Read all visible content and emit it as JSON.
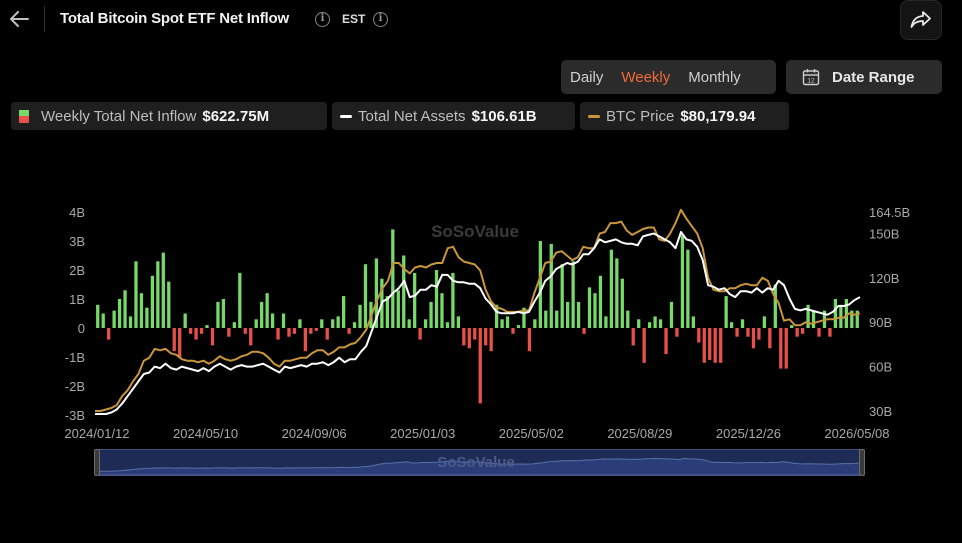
{
  "header": {
    "title": "Total Bitcoin Spot ETF Net Inflow",
    "timezone": "EST"
  },
  "periods": [
    {
      "label": "Daily",
      "active": false
    },
    {
      "label": "Weekly",
      "active": true
    },
    {
      "label": "Monthly",
      "active": false
    }
  ],
  "date_range": {
    "label": "Date Range",
    "icon_text": "12"
  },
  "legend": [
    {
      "name": "Weekly Total Net Inflow",
      "value": "$622.75M"
    },
    {
      "name": "Total Net Assets",
      "value": "$106.61B"
    },
    {
      "name": "BTC Price",
      "value": "$80,179.94"
    }
  ],
  "watermark": "SoSoValue",
  "colors": {
    "positive": "#78d86a",
    "negative": "#e8514a",
    "assets": "#ffffff",
    "btc": "#c9963a",
    "accent": "#f06a3a"
  },
  "chart_data": {
    "type": "bar",
    "x_tick_labels": [
      "2024/01/12",
      "2024/05/10",
      "2024/09/06",
      "2025/01/03",
      "2025/05/02",
      "2025/08/29",
      "2025/12/26",
      "2026/05/08"
    ],
    "y_left": {
      "ticks": [
        4,
        3,
        2,
        1,
        0,
        -1,
        -2,
        -3
      ],
      "tick_labels": [
        "4B",
        "3B",
        "2B",
        "1B",
        "0",
        "-1B",
        "-2B",
        "-3B"
      ],
      "range": [
        -3,
        4
      ]
    },
    "y_right": {
      "tick_labels": [
        "164.5B",
        "150B",
        "120B",
        "90B",
        "60B",
        "30B"
      ],
      "ticks": [
        164.5,
        150,
        120,
        90,
        60,
        30
      ],
      "range": [
        30,
        164.5
      ]
    },
    "grid": false,
    "legend_position": "top-left",
    "series": [
      {
        "name": "Weekly Total Net Inflow",
        "type": "bar",
        "unit": "B USD",
        "values": [
          0.8,
          0.5,
          -0.4,
          0.6,
          1.0,
          1.3,
          0.4,
          2.3,
          1.2,
          0.7,
          1.8,
          2.3,
          2.6,
          1.6,
          -0.8,
          -1.0,
          0.5,
          -0.2,
          -0.4,
          -0.2,
          0.1,
          -0.6,
          0.9,
          1.0,
          -0.3,
          0.2,
          1.9,
          -0.2,
          -0.6,
          0.3,
          0.9,
          1.2,
          0.5,
          -0.4,
          0.5,
          -0.3,
          -0.2,
          0.3,
          -0.8,
          -0.2,
          -0.1,
          0.3,
          -0.4,
          0.3,
          0.4,
          1.1,
          -0.2,
          0.2,
          0.8,
          2.2,
          0.9,
          2.4,
          1.7,
          1.1,
          3.4,
          1.3,
          2.5,
          0.3,
          1.9,
          -0.4,
          0.3,
          0.9,
          2.0,
          1.2,
          0.2,
          1.9,
          0.4,
          -0.6,
          -0.7,
          -0.4,
          -2.6,
          -0.6,
          -0.8,
          0.8,
          0.3,
          0.4,
          -0.2,
          0.1,
          0.7,
          -0.8,
          0.3,
          3.0,
          0.6,
          2.9,
          0.6,
          2.2,
          0.9,
          2.3,
          0.9,
          -0.2,
          1.4,
          1.2,
          1.8,
          0.4,
          2.7,
          2.4,
          1.7,
          0.6,
          -0.6,
          0.3,
          -1.2,
          0.2,
          0.4,
          0.3,
          -0.9,
          0.9,
          -0.3,
          3.2,
          2.7,
          0.4,
          -0.5,
          -1.2,
          -1.1,
          -1.2,
          -1.2,
          1.1,
          0.2,
          -0.3,
          0.3,
          -0.3,
          -0.7,
          -0.4,
          0.4,
          -0.7,
          1.5,
          -1.4,
          -1.4,
          0.1,
          -0.3,
          -0.2,
          0.8,
          0.6,
          -0.3,
          0.6,
          -0.3,
          1.0,
          0.8,
          1.0,
          0.6,
          0.6
        ]
      },
      {
        "name": "Total Net Assets",
        "type": "line",
        "axis": "right",
        "unit": "B USD",
        "values": [
          28,
          28,
          28,
          29,
          31,
          35,
          40,
          45,
          50,
          55,
          56,
          60,
          59,
          62,
          59,
          58,
          60,
          59,
          58,
          57,
          59,
          57,
          60,
          62,
          60,
          58,
          60,
          61,
          60,
          60,
          61,
          62,
          60,
          58,
          56,
          60,
          59,
          60,
          61,
          60,
          62,
          62,
          63,
          61,
          63,
          66,
          63,
          65,
          65,
          70,
          74,
          84,
          94,
          104,
          106,
          110,
          113,
          118,
          107,
          108,
          112,
          112,
          115,
          114,
          122,
          122,
          118,
          117,
          117,
          116,
          116,
          113,
          106,
          102,
          97,
          96,
          96,
          96,
          97,
          96,
          97,
          104,
          110,
          118,
          121,
          126,
          128,
          130,
          129,
          131,
          136,
          136,
          140,
          146,
          144,
          145,
          146,
          144,
          143,
          143,
          142,
          148,
          149,
          150,
          148,
          146,
          144,
          140,
          151,
          146,
          145,
          141,
          132,
          115,
          114,
          112,
          113,
          109,
          107,
          111,
          111,
          110,
          113,
          110,
          113,
          112,
          118,
          115,
          106,
          99,
          98,
          99,
          98,
          97,
          96,
          95,
          97,
          101,
          101,
          102,
          105,
          107
        ]
      },
      {
        "name": "BTC Price",
        "type": "line",
        "axis": "right",
        "unit": "USD",
        "values": [
          30,
          30,
          31,
          32,
          34,
          40,
          44,
          50,
          55,
          64,
          66,
          72,
          71,
          72,
          69,
          68,
          65,
          64,
          64,
          63,
          64,
          62,
          64,
          67,
          65,
          64,
          65,
          67,
          68,
          70,
          70,
          69,
          66,
          62,
          60,
          64,
          64,
          65,
          66,
          66,
          69,
          71,
          71,
          68,
          70,
          73,
          73,
          75,
          76,
          80,
          85,
          95,
          105,
          113,
          118,
          130,
          130,
          126,
          123,
          127,
          128,
          127,
          129,
          130,
          130,
          140,
          141,
          134,
          131,
          130,
          129,
          125,
          112,
          104,
          100,
          99,
          97,
          97,
          97,
          98,
          98,
          110,
          120,
          130,
          131,
          137,
          138,
          135,
          132,
          134,
          141,
          140,
          140,
          150,
          151,
          157,
          157,
          158,
          152,
          149,
          151,
          153,
          154,
          154,
          146,
          145,
          150,
          157,
          166,
          160,
          155,
          150,
          140,
          120,
          112,
          111,
          111,
          113,
          113,
          115,
          116,
          115,
          115,
          120,
          118,
          109,
          103,
          91,
          92,
          88,
          88,
          90,
          89,
          90,
          91,
          92,
          92,
          93,
          93,
          96,
          95,
          96
        ]
      }
    ]
  }
}
